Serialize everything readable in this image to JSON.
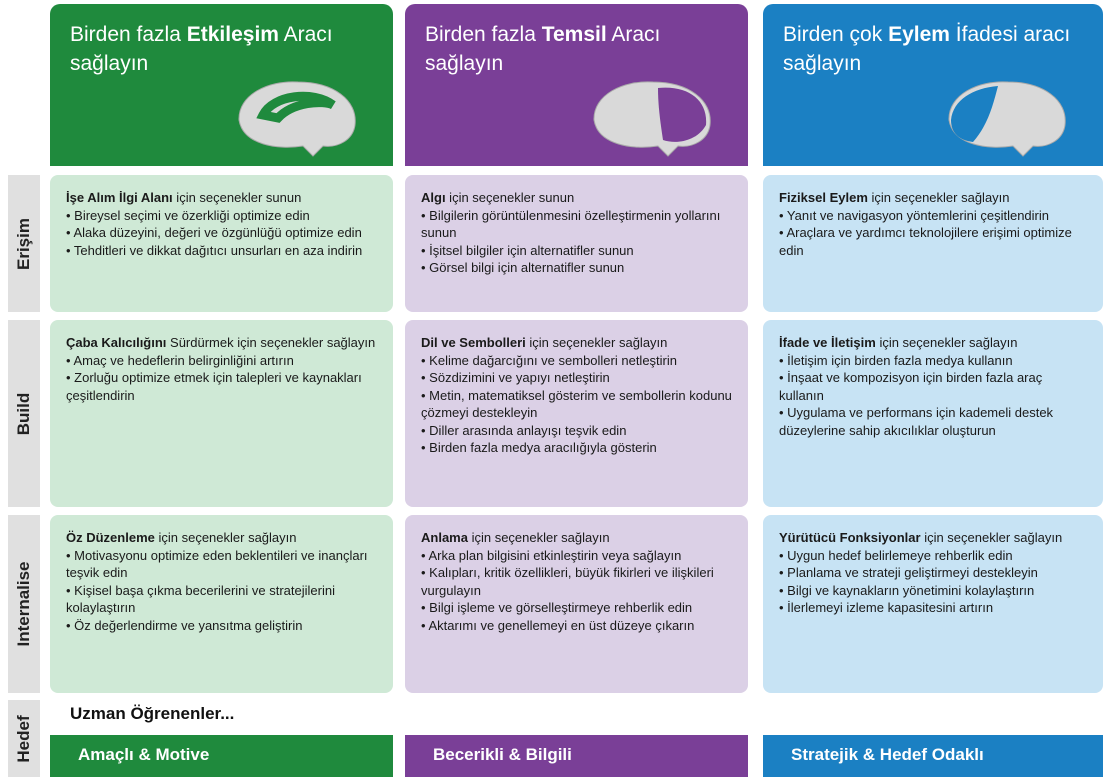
{
  "columns": [
    {
      "header": {
        "pre": "Birden fazla ",
        "bold": "Etkileşim",
        "post": " Aracı sağlayın"
      },
      "footer": "Amaçlı & Motive"
    },
    {
      "header": {
        "pre": "Birden fazla ",
        "bold": "Temsil",
        "post": " Aracı sağlayın"
      },
      "footer": "Becerikli & Bilgili"
    },
    {
      "header": {
        "pre": "Birden çok ",
        "bold": "Eylem",
        "post": " İfadesi aracı sağlayın"
      },
      "footer": "Stratejik & Hedef Odaklı"
    }
  ],
  "rows": [
    {
      "label": "Erişim",
      "cells": [
        {
          "bold": "İşe Alım İlgi Alanı",
          "rest": " için seçenekler sunun",
          "bullets": [
            "• Bireysel seçimi ve özerkliği optimize edin",
            "• Alaka düzeyini, değeri ve özgünlüğü optimize edin",
            "• Tehditleri ve dikkat dağıtıcı unsurları en aza indirin"
          ]
        },
        {
          "bold": "Algı",
          "rest": " için seçenekler sunun",
          "bullets": [
            "• Bilgilerin görüntülenmesini özelleştirmenin yollarını sunun",
            "• İşitsel bilgiler için alternatifler sunun",
            "• Görsel bilgi için alternatifler sunun"
          ]
        },
        {
          "bold": "Fiziksel Eylem",
          "rest": " için seçenekler sağlayın",
          "bullets": [
            "• Yanıt ve navigasyon yöntemlerini çeşitlendirin",
            "• Araçlara ve yardımcı teknolojilere erişimi optimize edin"
          ]
        }
      ]
    },
    {
      "label": "Build",
      "cells": [
        {
          "bold": "Çaba Kalıcılığını",
          "rest": " Sürdürmek için seçenekler sağlayın",
          "bullets": [
            "• Amaç ve hedeflerin belirginliğini artırın",
            "• Zorluğu optimize etmek için talepleri ve kaynakları çeşitlendirin"
          ]
        },
        {
          "bold": "Dil ve Sembolleri",
          "rest": " için seçenekler sağlayın",
          "bullets": [
            "• Kelime dağarcığını ve sembolleri netleştirin",
            "• Sözdizimini ve yapıyı netleştirin",
            "• Metin, matematiksel gösterim ve sembollerin kodunu çözmeyi destekleyin",
            "• Diller arasında anlayışı teşvik edin",
            "• Birden fazla medya aracılığıyla gösterin"
          ]
        },
        {
          "bold": "İfade ve İletişim",
          "rest": " için seçenekler sağlayın",
          "bullets": [
            "• İletişim için birden fazla medya kullanın",
            "• İnşaat ve kompozisyon için birden fazla araç kullanın",
            "• Uygulama ve performans için kademeli destek düzeylerine sahip akıcılıklar oluşturun"
          ]
        }
      ]
    },
    {
      "label": "Internalise",
      "cells": [
        {
          "bold": "Öz Düzenleme",
          "rest": " için seçenekler sağlayın",
          "bullets": [
            "• Motivasyonu optimize eden beklentileri ve inançları teşvik edin",
            "• Kişisel başa çıkma becerilerini ve stratejilerini kolaylaştırın",
            "• Öz değerlendirme ve yansıtma geliştirin"
          ]
        },
        {
          "bold": "Anlama",
          "rest": " için seçenekler sağlayın",
          "bullets": [
            "• Arka plan bilgisini etkinleştirin veya sağlayın",
            "• Kalıpları, kritik özellikleri, büyük fikirleri ve ilişkileri vurgulayın",
            "• Bilgi işleme ve görselleştirmeye rehberlik edin",
            "• Aktarımı ve genellemeyi en üst düzeye çıkarın"
          ]
        },
        {
          "bold": "Yürütücü Fonksiyonlar",
          "rest": " için seçenekler sağlayın",
          "bullets": [
            "• Uygun hedef belirlemeye rehberlik edin",
            "• Planlama ve strateji geliştirmeyi destekleyin",
            "• Bilgi ve kaynakların yönetimini kolaylaştırın",
            "• İlerlemeyi izleme kapasitesini artırın"
          ]
        }
      ]
    }
  ],
  "goal": {
    "label": "Hedef",
    "text": "Uzman Öğrenenler..."
  }
}
